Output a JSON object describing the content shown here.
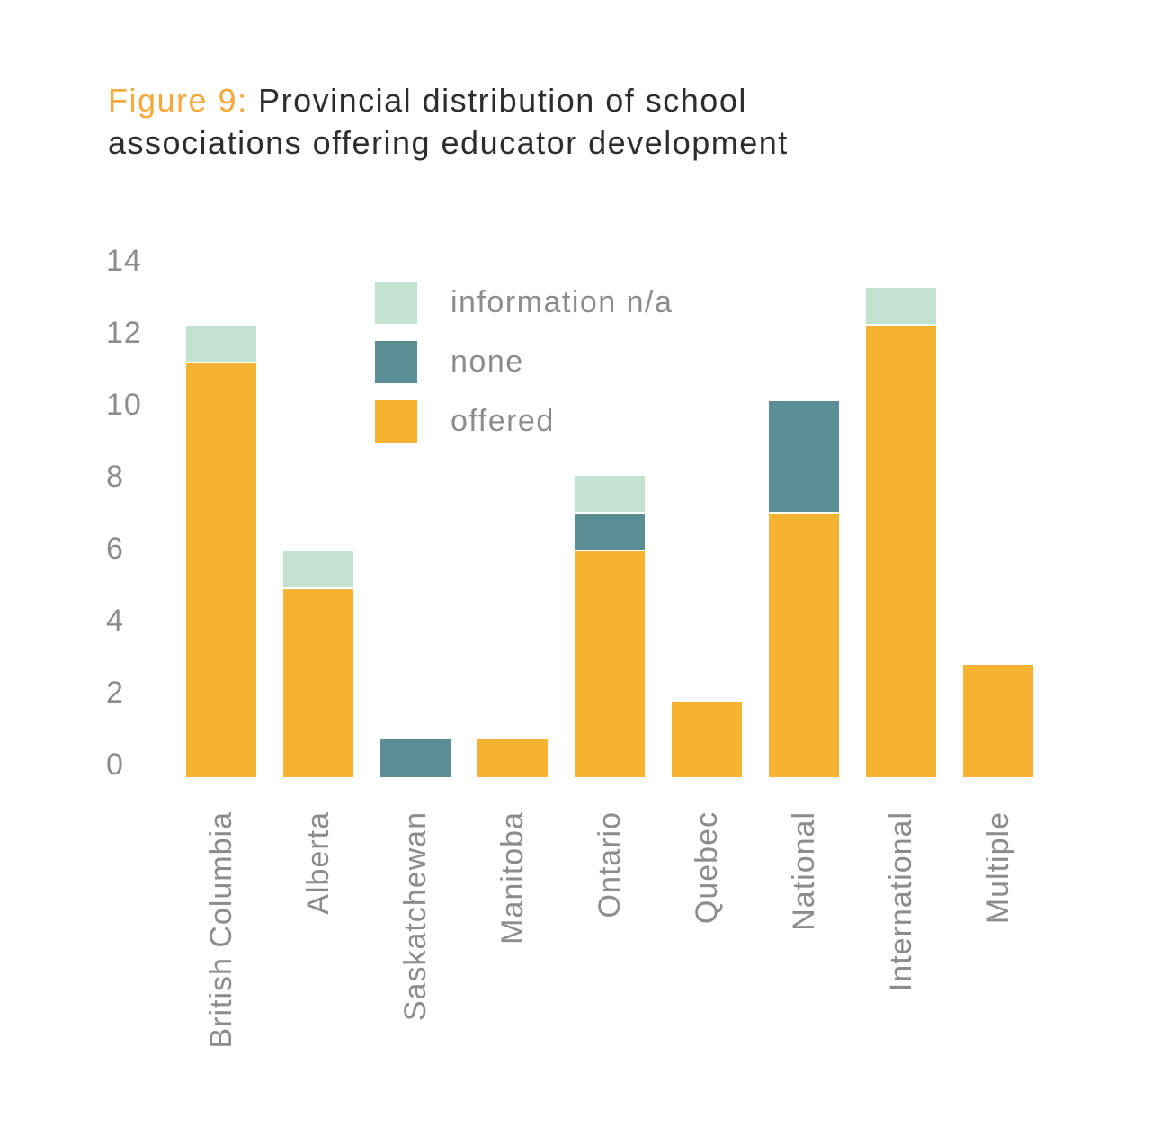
{
  "title": {
    "accent": "Figure 9:",
    "line1_rest": "Provincial distribution of school",
    "line2": "associations offering educator development"
  },
  "colors": {
    "offered": "#F6B233",
    "none": "#5A8E94",
    "na": "#C4E2D2",
    "title_accent": "#F9A83C",
    "title_text": "#2D2D2D",
    "axis_text": "#8C8C8C"
  },
  "legend": {
    "items": [
      {
        "label": "information n/a",
        "key": "na"
      },
      {
        "label": "none",
        "key": "none"
      },
      {
        "label": "offered",
        "key": "offered"
      }
    ]
  },
  "chart_data": {
    "type": "bar",
    "stacked": true,
    "title": "Figure 9: Provincial distribution of school associations offering educator development",
    "categories": [
      "British Columbia",
      "Alberta",
      "Saskatchewan",
      "Manitoba",
      "Ontario",
      "Quebec",
      "National",
      "International",
      "Multiple"
    ],
    "series": [
      {
        "name": "offered",
        "key": "offered",
        "values": [
          11,
          5,
          0,
          1,
          6,
          2,
          7,
          12,
          3
        ]
      },
      {
        "name": "none",
        "key": "none",
        "values": [
          0,
          0,
          1,
          0,
          1,
          0,
          3,
          0,
          0
        ]
      },
      {
        "name": "information n/a",
        "key": "na",
        "values": [
          1,
          1,
          0,
          0,
          1,
          0,
          0,
          1,
          0
        ]
      }
    ],
    "totals": [
      12,
      6,
      1,
      1,
      8,
      2,
      10,
      13,
      3
    ],
    "yticks": [
      0,
      2,
      4,
      6,
      8,
      10,
      12,
      14
    ],
    "ylim": [
      0,
      14
    ],
    "xlabel": "",
    "ylabel": "",
    "grid": false,
    "legend_position": "upper-left-inside-plot",
    "x_label_rotation": -90
  }
}
